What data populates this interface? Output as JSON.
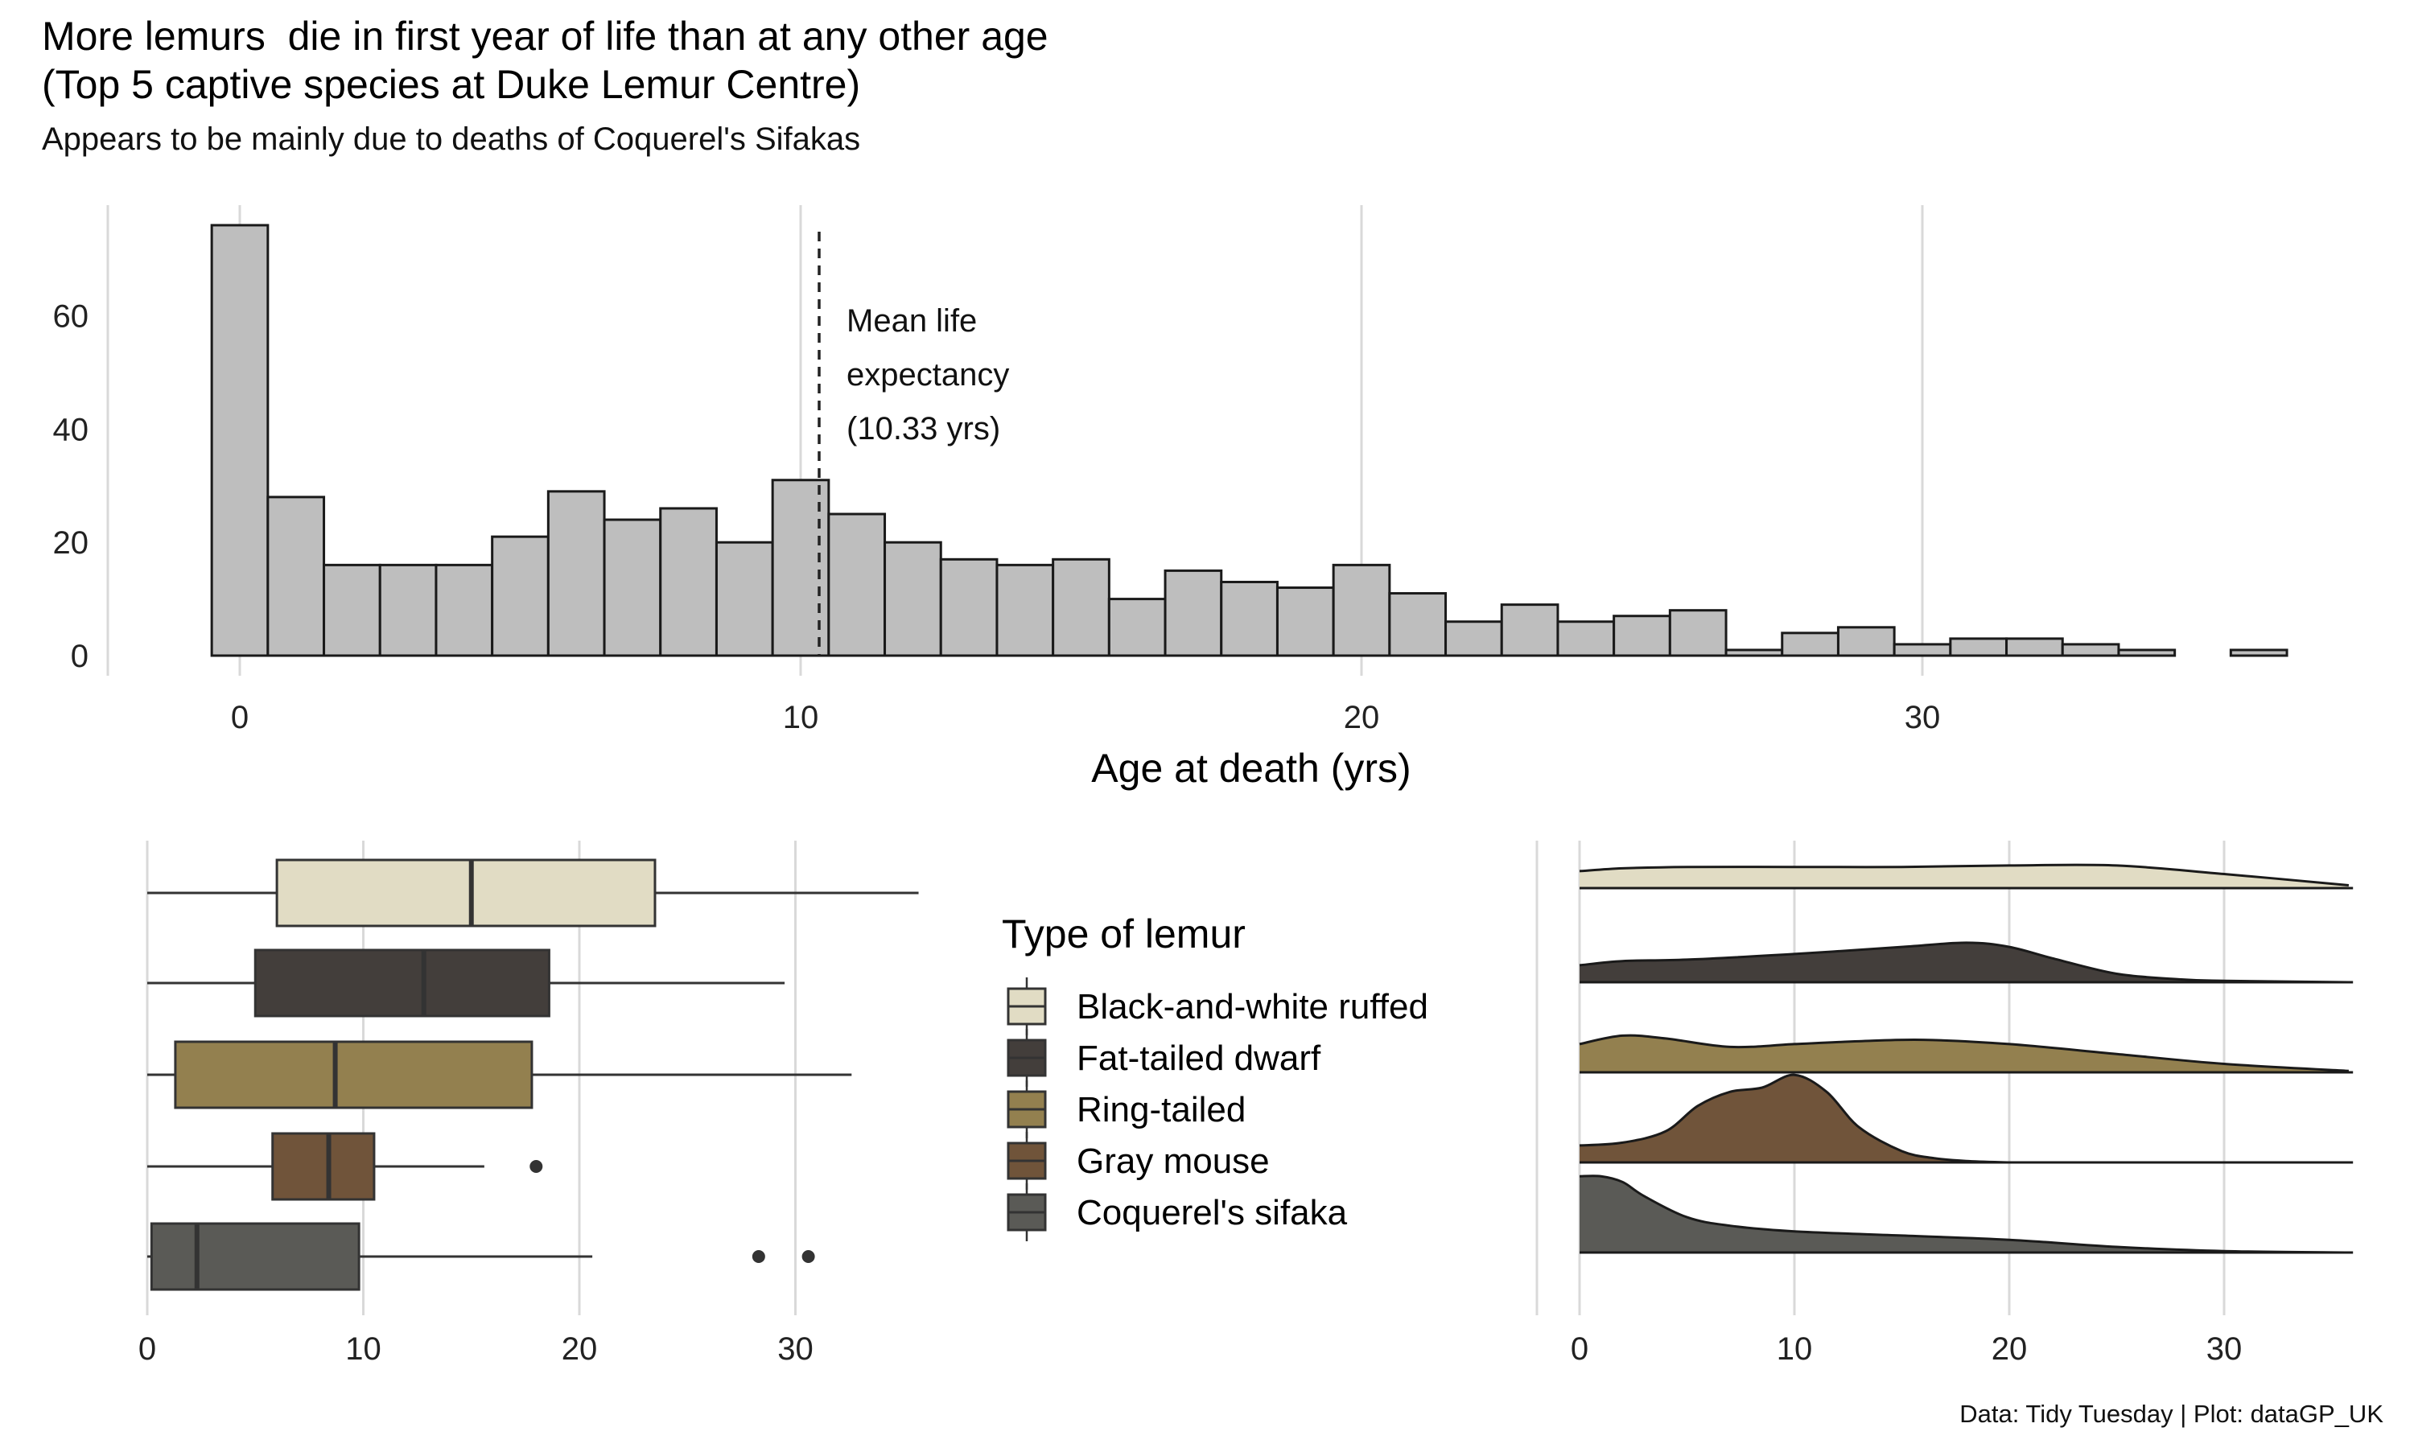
{
  "header": {
    "title_line1": "More lemurs  die in first year of life than at any other age",
    "title_line2": "(Top 5 captive species at Duke Lemur Centre)",
    "subtitle": "Appears to be mainly due to deaths of Coquerel's Sifakas",
    "caption": "Data: Tidy Tuesday | Plot: dataGP_UK"
  },
  "colors": {
    "histogram_fill": "#bebebe",
    "outline": "#1a1a1a",
    "grid": "#d9d9d9",
    "Black-and-white ruffed": "#e1dcc4",
    "Fat-tailed dwarf": "#433e3b",
    "Ring-tailed": "#93804f",
    "Gray mouse": "#70543a",
    "Coquerel's sifaka": "#5a5a56"
  },
  "chart_data": [
    {
      "type": "bar",
      "subtype": "histogram",
      "title": "",
      "xlabel": "Age at death (yrs)",
      "ylabel": "",
      "bin_width": 1,
      "bin_centers": [
        0,
        1,
        2,
        3,
        4,
        5,
        6,
        7,
        8,
        9,
        10,
        11,
        12,
        13,
        14,
        15,
        16,
        17,
        18,
        19,
        20,
        21,
        22,
        23,
        24,
        25,
        26,
        27,
        28,
        29,
        30,
        31,
        32,
        33,
        34,
        35,
        36
      ],
      "values": [
        76,
        28,
        16,
        16,
        16,
        21,
        29,
        24,
        26,
        20,
        31,
        25,
        20,
        17,
        16,
        17,
        10,
        15,
        13,
        12,
        16,
        11,
        6,
        9,
        6,
        7,
        8,
        1,
        4,
        5,
        2,
        3,
        3,
        2,
        1,
        0,
        1
      ],
      "xlim": [
        -1,
        36.5
      ],
      "ylim": [
        0,
        76
      ],
      "x_ticks": [
        0,
        10,
        20,
        30
      ],
      "y_ticks": [
        0,
        20,
        40,
        60
      ],
      "grid": "vertical major lines",
      "annotations": [
        {
          "type": "vline",
          "style": "dashed",
          "x": 10.33,
          "text_lines": [
            "Mean life",
            "expectancy",
            " (10.33 yrs)"
          ]
        }
      ]
    },
    {
      "type": "boxplot",
      "title": "",
      "xlabel": "",
      "ylabel": "",
      "xlim": [
        0,
        36
      ],
      "x_ticks": [
        0,
        10,
        20,
        30
      ],
      "grid": "vertical major lines",
      "series": [
        {
          "name": "Black-and-white ruffed",
          "whisker_low": 0,
          "q1": 6,
          "median": 15,
          "q3": 23.5,
          "whisker_high": 35.7,
          "outliers": []
        },
        {
          "name": "Fat-tailed dwarf",
          "whisker_low": 0,
          "q1": 5,
          "median": 12.8,
          "q3": 18.6,
          "whisker_high": 29.5,
          "outliers": []
        },
        {
          "name": "Ring-tailed",
          "whisker_low": 0,
          "q1": 1.3,
          "median": 8.7,
          "q3": 17.8,
          "whisker_high": 32.6,
          "outliers": []
        },
        {
          "name": "Gray mouse",
          "whisker_low": 0,
          "q1": 5.8,
          "median": 8.4,
          "q3": 10.5,
          "whisker_high": 15.6,
          "outliers": [
            18
          ]
        },
        {
          "name": "Coquerel's sifaka",
          "whisker_low": 0,
          "q1": 0.2,
          "median": 2.3,
          "q3": 9.8,
          "whisker_high": 20.6,
          "outliers": [
            28.3,
            30.6
          ]
        }
      ]
    },
    {
      "type": "area",
      "subtype": "ridgeline-density",
      "title": "",
      "xlabel": "",
      "ylabel": "",
      "xlim": [
        0,
        36
      ],
      "x_ticks": [
        0,
        10,
        20,
        30
      ],
      "grid": "vertical major lines",
      "series": [
        {
          "name": "Black-and-white ruffed",
          "x": [
            0,
            2,
            5,
            10,
            15,
            20,
            25,
            30,
            35.8
          ],
          "density": [
            0.012,
            0.014,
            0.015,
            0.015,
            0.015,
            0.016,
            0.016,
            0.01,
            0.002
          ]
        },
        {
          "name": "Fat-tailed dwarf",
          "x": [
            0,
            2,
            5,
            10,
            15,
            18,
            20,
            22,
            25,
            28,
            30,
            35.8
          ],
          "density": [
            0.012,
            0.015,
            0.016,
            0.02,
            0.025,
            0.028,
            0.025,
            0.017,
            0.006,
            0.002,
            0.001,
            0.0
          ]
        },
        {
          "name": "Ring-tailed",
          "x": [
            0,
            2,
            4,
            7,
            10,
            13,
            16,
            20,
            25,
            30,
            35.8
          ],
          "density": [
            0.02,
            0.026,
            0.024,
            0.018,
            0.02,
            0.022,
            0.023,
            0.02,
            0.013,
            0.006,
            0.001
          ]
        },
        {
          "name": "Gray mouse",
          "x": [
            0,
            2,
            4,
            5.5,
            7,
            8.5,
            10,
            11.5,
            13,
            15,
            16.5,
            18,
            20
          ],
          "density": [
            0.012,
            0.014,
            0.022,
            0.04,
            0.05,
            0.053,
            0.062,
            0.05,
            0.025,
            0.008,
            0.003,
            0.001,
            0.0
          ]
        },
        {
          "name": "Coquerel's sifaka",
          "x": [
            0,
            1,
            2,
            3,
            5,
            7,
            10,
            15,
            20,
            25,
            30,
            35.8
          ],
          "density": [
            0.054,
            0.054,
            0.05,
            0.04,
            0.025,
            0.019,
            0.015,
            0.012,
            0.009,
            0.004,
            0.001,
            0.0
          ]
        }
      ]
    }
  ],
  "legend": {
    "title": "Type of lemur",
    "items": [
      "Black-and-white ruffed",
      "Fat-tailed dwarf",
      "Ring-tailed",
      "Gray mouse",
      "Coquerel's sifaka"
    ]
  }
}
